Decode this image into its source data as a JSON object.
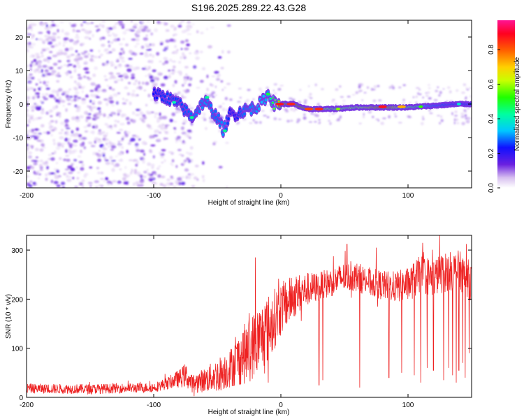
{
  "title": "S196.2025.289.22.43.G28",
  "chart_data": [
    {
      "type": "heatmap",
      "title": "S196.2025.289.22.43.G28",
      "xlabel": "Height of straight line (km)",
      "ylabel": "Frequency (Hz)",
      "xlim": [
        -200,
        150
      ],
      "ylim": [
        -25,
        25
      ],
      "xticks": [
        -200,
        -100,
        0,
        100
      ],
      "yticks": [
        -20,
        -10,
        0,
        10,
        20
      ],
      "colorbar": {
        "label": "Normalized spectral amplitude",
        "range": [
          0.0,
          0.97
        ],
        "ticks": [
          "0.0",
          "0.2",
          "0.4",
          "0.6",
          "0.8"
        ],
        "colors": [
          "#ffffff",
          "#e0c8f0",
          "#7a2ae0",
          "#1a1aff",
          "#00e0ff",
          "#00ff60",
          "#b0ff00",
          "#ffff00",
          "#ff8000",
          "#ff0000",
          "#ff1493"
        ]
      },
      "ridge": {
        "description_points_x": [
          -100,
          -90,
          -80,
          -70,
          -60,
          -50,
          -45,
          -40,
          -35,
          -30,
          -20,
          -15,
          -10,
          -5,
          0,
          10,
          20,
          40,
          60,
          80,
          100,
          120,
          140,
          150
        ],
        "frequency_hz": [
          3,
          2,
          0,
          -4,
          1,
          -4,
          -8,
          -3,
          -3,
          -2,
          -1,
          0.5,
          3,
          0,
          0,
          0,
          -1.5,
          -1.5,
          -1,
          -1,
          -1,
          -0.5,
          0,
          0
        ],
        "amplitude": [
          0.3,
          0.35,
          0.35,
          0.4,
          0.45,
          0.4,
          0.45,
          0.3,
          0.3,
          0.4,
          0.45,
          0.5,
          0.45,
          0.6,
          0.85,
          0.9,
          0.85,
          0.6,
          0.65,
          0.9,
          0.6,
          0.4,
          0.35,
          0.35
        ]
      },
      "noise_region_x": [
        -200,
        -50
      ]
    },
    {
      "type": "line",
      "xlabel": "Height of straight line (km)",
      "ylabel": "SNR (10 * v/v)",
      "xlim": [
        -200,
        150
      ],
      "ylim": [
        0,
        330
      ],
      "xticks": [
        -200,
        -100,
        0,
        100
      ],
      "yticks": [
        0,
        100,
        200,
        300
      ],
      "color": "#ee2222",
      "series": [
        {
          "name": "SNR",
          "trend_x": [
            -200,
            -150,
            -100,
            -90,
            -80,
            -75,
            -70,
            -60,
            -50,
            -40,
            -30,
            -20,
            -10,
            0,
            10,
            20,
            30,
            40,
            50,
            60,
            70,
            80,
            90,
            100,
            110,
            120,
            130,
            140,
            150
          ],
          "trend_y": [
            18,
            17,
            20,
            28,
            38,
            45,
            28,
            35,
            45,
            60,
            85,
            110,
            140,
            180,
            205,
            220,
            225,
            235,
            245,
            245,
            235,
            228,
            225,
            230,
            250,
            245,
            255,
            260,
            235
          ],
          "noise_amplitude": [
            10,
            10,
            10,
            12,
            18,
            25,
            18,
            25,
            35,
            40,
            60,
            70,
            70,
            55,
            45,
            35,
            30,
            30,
            30,
            30,
            30,
            30,
            32,
            35,
            40,
            40,
            40,
            40,
            40
          ],
          "dips_x": [
            -43,
            -10,
            30,
            33,
            62,
            85,
            95,
            105,
            110,
            115,
            120,
            125,
            128,
            132,
            135,
            138,
            140,
            143,
            145,
            148
          ],
          "dips_y": [
            20,
            30,
            25,
            35,
            20,
            40,
            50,
            45,
            30,
            60,
            55,
            40,
            35,
            60,
            45,
            30,
            55,
            70,
            40,
            90
          ],
          "peaks": [
            [
              -20,
              285
            ],
            [
              52,
              312
            ],
            [
              75,
              305
            ],
            [
              125,
              330
            ]
          ]
        }
      ]
    }
  ]
}
